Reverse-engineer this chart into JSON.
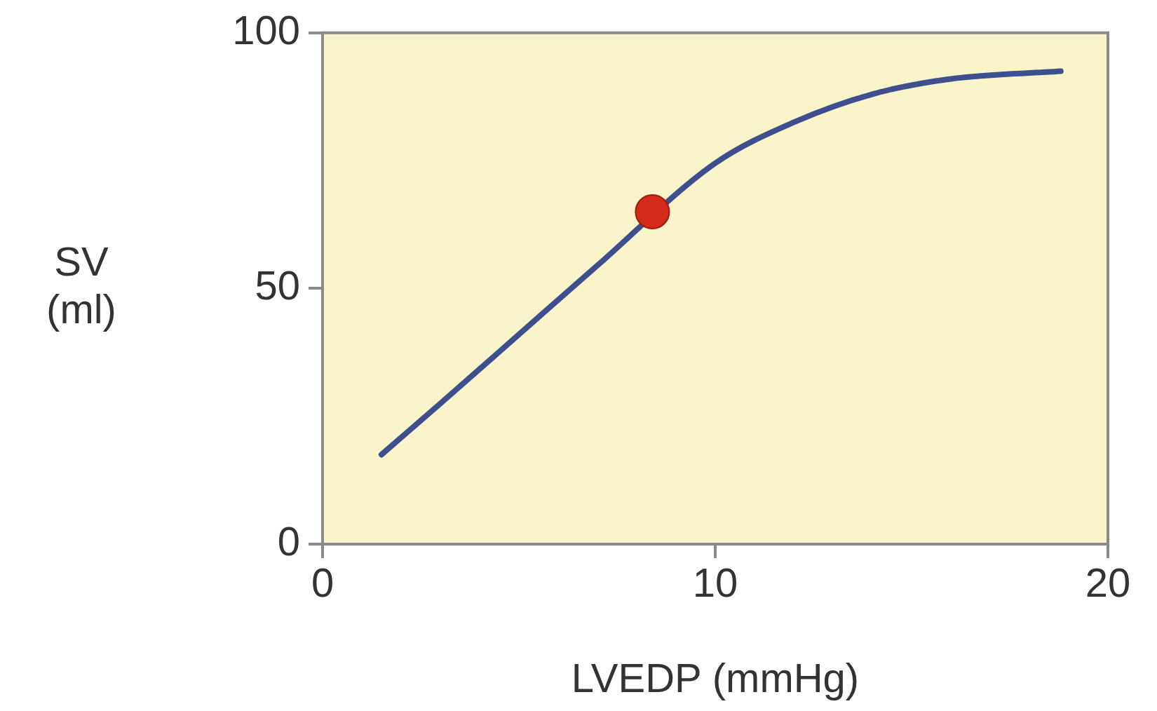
{
  "chart_data": {
    "type": "line",
    "xlabel": "LVEDP (mmHg)",
    "ylabel": "SV (ml)",
    "xlim": [
      0,
      20
    ],
    "ylim": [
      0,
      100
    ],
    "xticks": [
      0,
      10,
      20
    ],
    "yticks": [
      0,
      50,
      100
    ],
    "grid": false,
    "legend": false,
    "marker": "none",
    "series": [
      {
        "color": "#3d4f8f",
        "x": [
          1.5,
          3,
          5,
          7,
          10,
          12,
          14,
          16,
          18.8
        ],
        "values": [
          17.5,
          27.5,
          41,
          54.5,
          74.5,
          82.5,
          88,
          91,
          92.5
        ]
      },
      {
        "type": "scatter",
        "color": "#d42a1a",
        "x": [
          8.4
        ],
        "values": [
          65
        ],
        "marker": "circle"
      }
    ]
  }
}
